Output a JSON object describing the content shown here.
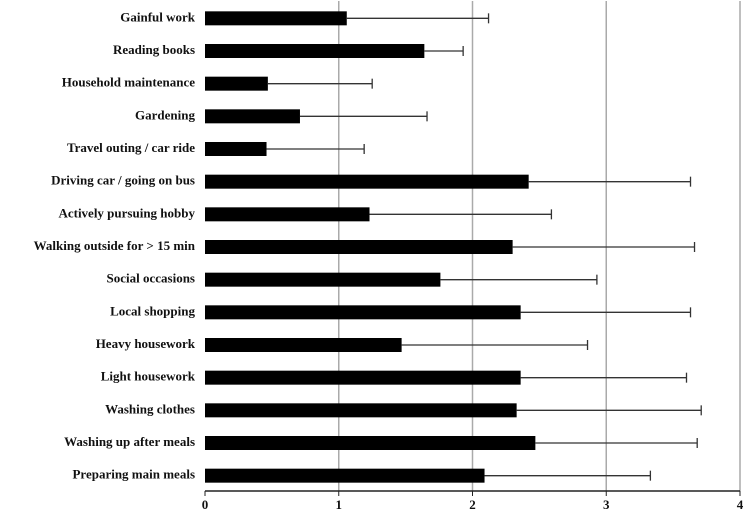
{
  "chart_data": {
    "type": "hbar_error",
    "categories": [
      "Gainful work",
      "Reading books",
      "Household maintenance",
      "Gardening",
      "Travel outing / car ride",
      "Driving car / going on bus",
      "Actively pursuing hobby",
      "Walking outside for > 15 min",
      "Social occasions",
      "Local shopping",
      "Heavy housework",
      "Light housework",
      "Washing clothes",
      "Washing up after meals",
      "Preparing main meals"
    ],
    "values": [
      1.06,
      1.64,
      0.47,
      0.71,
      0.46,
      2.42,
      1.23,
      2.3,
      1.76,
      2.36,
      1.47,
      2.36,
      2.33,
      2.47,
      2.09
    ],
    "errors": [
      1.06,
      0.29,
      0.78,
      0.95,
      0.73,
      1.21,
      1.36,
      1.36,
      1.17,
      1.27,
      1.39,
      1.24,
      1.38,
      1.21,
      1.24
    ],
    "color": "#000000",
    "xlim": [
      0,
      4
    ],
    "xticks": [
      0,
      1,
      2,
      3,
      4
    ],
    "grid": true
  }
}
